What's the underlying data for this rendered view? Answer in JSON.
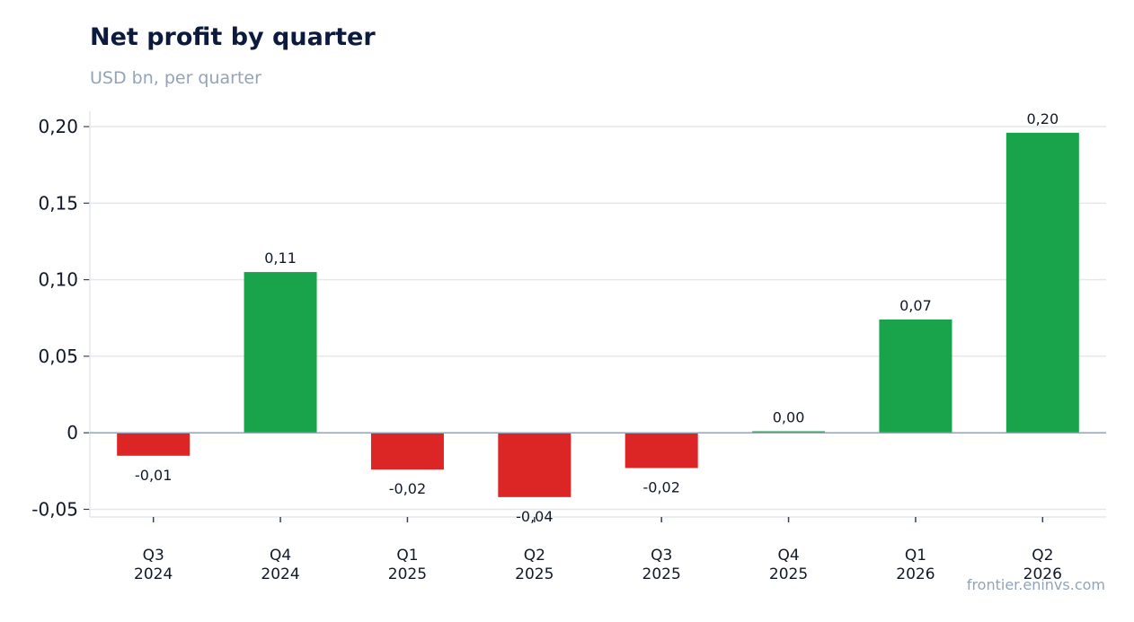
{
  "header": {
    "title": "Net profit by quarter",
    "subtitle": "USD bn, per quarter"
  },
  "footer": {
    "source": "frontier.eninvs.com"
  },
  "colors": {
    "positive": "#19a34a",
    "negative": "#dc2626",
    "grid": "#e5e7eb",
    "baseline": "#94a3b8",
    "axis": "#e5e7eb",
    "tick": "#374151"
  },
  "chart_data": {
    "type": "bar",
    "title": "Net profit by quarter",
    "subtitle": "USD bn, per quarter",
    "xlabel": "",
    "ylabel": "",
    "categories": [
      [
        "Q3",
        "2024"
      ],
      [
        "Q4",
        "2024"
      ],
      [
        "Q1",
        "2025"
      ],
      [
        "Q2",
        "2025"
      ],
      [
        "Q3",
        "2025"
      ],
      [
        "Q4",
        "2025"
      ],
      [
        "Q1",
        "2026"
      ],
      [
        "Q2",
        "2026"
      ]
    ],
    "values": [
      -0.015,
      0.105,
      -0.024,
      -0.042,
      -0.023,
      0.001,
      0.074,
      0.196
    ],
    "data_labels": [
      "-0,01",
      "0,11",
      "-0,02",
      "-0,04",
      "-0,02",
      "0,00",
      "0,07",
      "0,20"
    ],
    "ylim": [
      -0.055,
      0.21
    ],
    "yticks": [
      -0.05,
      0,
      0.05,
      0.1,
      0.15,
      0.2
    ],
    "ytick_labels": [
      "-0,05",
      "0",
      "0,05",
      "0,10",
      "0,15",
      "0,20"
    ],
    "grid": true,
    "legend": "none"
  }
}
